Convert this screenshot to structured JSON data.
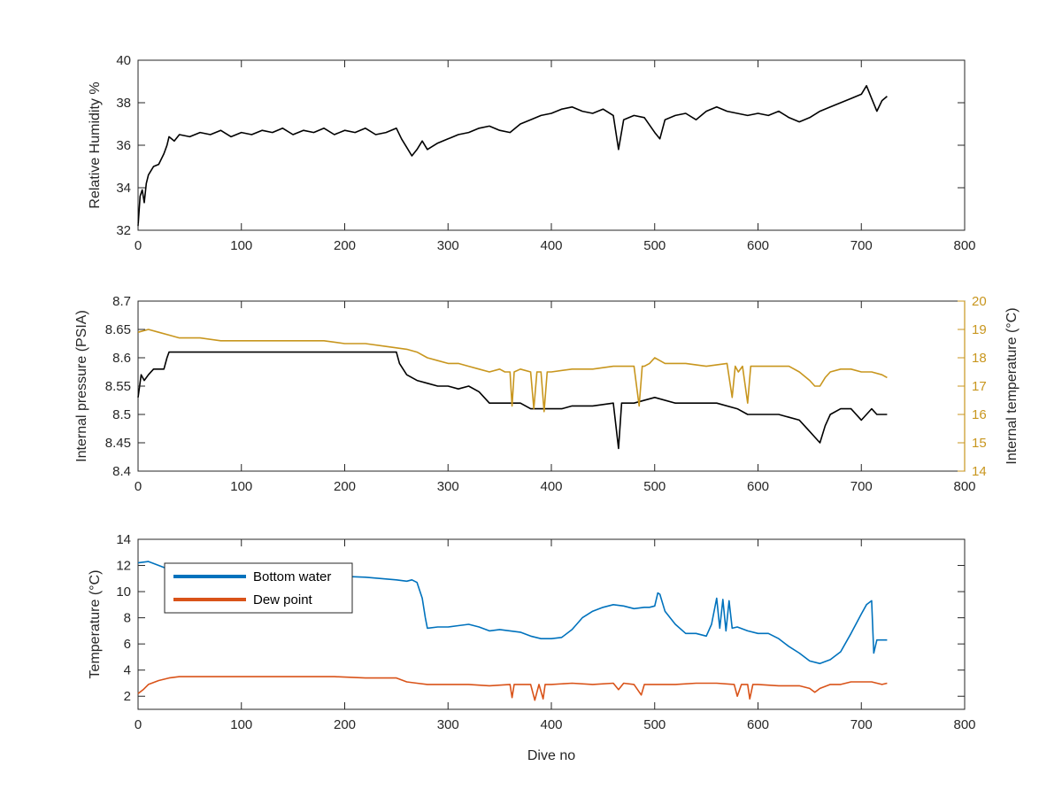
{
  "colors": {
    "black": "#000000",
    "gold": "#C8961E",
    "blue": "#0072BD",
    "orange": "#D95319",
    "axis": "#262626"
  },
  "chart_data": [
    {
      "type": "line",
      "xlabel": "",
      "ylabel": "Relative Humidity %",
      "xlim": [
        0,
        800
      ],
      "ylim": [
        32,
        40
      ],
      "xticks": [
        0,
        100,
        200,
        300,
        400,
        500,
        600,
        700,
        800
      ],
      "yticks": [
        32,
        34,
        36,
        38,
        40
      ],
      "grid": false,
      "series": [
        {
          "color": "#000000",
          "x": [
            0,
            2,
            4,
            6,
            8,
            10,
            15,
            20,
            25,
            28,
            30,
            35,
            40,
            50,
            60,
            70,
            80,
            90,
            100,
            110,
            120,
            130,
            140,
            150,
            160,
            170,
            180,
            190,
            200,
            210,
            220,
            230,
            240,
            250,
            255,
            260,
            265,
            270,
            275,
            280,
            290,
            300,
            310,
            320,
            330,
            340,
            350,
            360,
            370,
            380,
            390,
            400,
            410,
            420,
            430,
            440,
            450,
            460,
            465,
            470,
            480,
            490,
            500,
            505,
            510,
            520,
            530,
            540,
            550,
            560,
            570,
            580,
            590,
            600,
            610,
            620,
            630,
            640,
            650,
            660,
            670,
            680,
            690,
            700,
            705,
            710,
            715,
            720,
            725
          ],
          "y": [
            32.2,
            33.6,
            33.9,
            33.3,
            34.2,
            34.6,
            35.0,
            35.1,
            35.6,
            36.0,
            36.4,
            36.2,
            36.5,
            36.4,
            36.6,
            36.5,
            36.7,
            36.4,
            36.6,
            36.5,
            36.7,
            36.6,
            36.8,
            36.5,
            36.7,
            36.6,
            36.8,
            36.5,
            36.7,
            36.6,
            36.8,
            36.5,
            36.6,
            36.8,
            36.3,
            35.9,
            35.5,
            35.8,
            36.2,
            35.8,
            36.1,
            36.3,
            36.5,
            36.6,
            36.8,
            36.9,
            36.7,
            36.6,
            37.0,
            37.2,
            37.4,
            37.5,
            37.7,
            37.8,
            37.6,
            37.5,
            37.7,
            37.4,
            35.8,
            37.2,
            37.4,
            37.3,
            36.6,
            36.3,
            37.2,
            37.4,
            37.5,
            37.2,
            37.6,
            37.8,
            37.6,
            37.5,
            37.4,
            37.5,
            37.4,
            37.6,
            37.3,
            37.1,
            37.3,
            37.6,
            37.8,
            38.0,
            38.2,
            38.4,
            38.8,
            38.2,
            37.6,
            38.1,
            38.3
          ]
        }
      ]
    },
    {
      "type": "line",
      "xlabel": "",
      "ylabel": "Internal pressure (PSIA)",
      "y2label": "Internal temperature (°C)",
      "xlim": [
        0,
        800
      ],
      "ylim": [
        8.4,
        8.7
      ],
      "y2lim": [
        14,
        20
      ],
      "xticks": [
        0,
        100,
        200,
        300,
        400,
        500,
        600,
        700,
        800
      ],
      "yticks": [
        8.4,
        8.45,
        8.5,
        8.55,
        8.6,
        8.65,
        8.7
      ],
      "y2ticks": [
        14,
        15,
        16,
        17,
        18,
        19,
        20
      ],
      "grid": false,
      "series": [
        {
          "axis": "left",
          "color": "#000000",
          "x": [
            0,
            3,
            6,
            10,
            15,
            20,
            25,
            28,
            30,
            40,
            60,
            80,
            100,
            120,
            140,
            160,
            180,
            200,
            220,
            240,
            250,
            253,
            260,
            270,
            280,
            290,
            300,
            310,
            320,
            330,
            340,
            350,
            360,
            370,
            380,
            390,
            400,
            410,
            420,
            440,
            460,
            465,
            468,
            480,
            500,
            520,
            540,
            560,
            580,
            590,
            600,
            620,
            640,
            650,
            655,
            660,
            665,
            670,
            680,
            690,
            700,
            710,
            715,
            720,
            725
          ],
          "y": [
            8.53,
            8.57,
            8.56,
            8.57,
            8.58,
            8.58,
            8.58,
            8.6,
            8.61,
            8.61,
            8.61,
            8.61,
            8.61,
            8.61,
            8.61,
            8.61,
            8.61,
            8.61,
            8.61,
            8.61,
            8.61,
            8.59,
            8.57,
            8.56,
            8.555,
            8.55,
            8.55,
            8.545,
            8.55,
            8.54,
            8.52,
            8.52,
            8.52,
            8.52,
            8.51,
            8.51,
            8.51,
            8.51,
            8.515,
            8.515,
            8.52,
            8.44,
            8.52,
            8.52,
            8.53,
            8.52,
            8.52,
            8.52,
            8.51,
            8.5,
            8.5,
            8.5,
            8.49,
            8.47,
            8.46,
            8.45,
            8.48,
            8.5,
            8.51,
            8.51,
            8.49,
            8.51,
            8.5,
            8.5,
            8.5
          ]
        },
        {
          "axis": "right",
          "color": "#C8961E",
          "x": [
            0,
            10,
            20,
            30,
            40,
            60,
            80,
            100,
            120,
            140,
            160,
            180,
            200,
            220,
            240,
            260,
            270,
            280,
            290,
            300,
            310,
            320,
            330,
            340,
            350,
            355,
            360,
            362,
            364,
            370,
            380,
            383,
            386,
            390,
            393,
            396,
            400,
            420,
            440,
            460,
            480,
            485,
            488,
            490,
            495,
            500,
            505,
            510,
            530,
            550,
            570,
            575,
            578,
            581,
            585,
            590,
            593,
            596,
            600,
            620,
            630,
            640,
            650,
            655,
            660,
            665,
            670,
            680,
            690,
            700,
            710,
            720,
            725
          ],
          "y": [
            18.9,
            19.0,
            18.9,
            18.8,
            18.7,
            18.7,
            18.6,
            18.6,
            18.6,
            18.6,
            18.6,
            18.6,
            18.5,
            18.5,
            18.4,
            18.3,
            18.2,
            18.0,
            17.9,
            17.8,
            17.8,
            17.7,
            17.6,
            17.5,
            17.6,
            17.5,
            17.5,
            16.3,
            17.5,
            17.6,
            17.5,
            16.2,
            17.5,
            17.5,
            16.1,
            17.5,
            17.5,
            17.6,
            17.6,
            17.7,
            17.7,
            16.3,
            17.7,
            17.7,
            17.8,
            18.0,
            17.9,
            17.8,
            17.8,
            17.7,
            17.8,
            16.6,
            17.7,
            17.5,
            17.7,
            16.4,
            17.7,
            17.7,
            17.7,
            17.7,
            17.7,
            17.5,
            17.2,
            17.0,
            17.0,
            17.3,
            17.5,
            17.6,
            17.6,
            17.5,
            17.5,
            17.4,
            17.3
          ]
        }
      ]
    },
    {
      "type": "line",
      "xlabel": "Dive no",
      "ylabel": "Temperature (°C)",
      "xlim": [
        0,
        800
      ],
      "ylim": [
        1,
        14
      ],
      "xticks": [
        0,
        100,
        200,
        300,
        400,
        500,
        600,
        700,
        800
      ],
      "yticks": [
        2,
        4,
        6,
        8,
        10,
        12,
        14
      ],
      "grid": false,
      "legend_placement": "top-left",
      "series": [
        {
          "name": "Bottom water",
          "color": "#0072BD",
          "x": [
            0,
            10,
            20,
            30,
            50,
            80,
            100,
            130,
            160,
            190,
            220,
            250,
            260,
            265,
            270,
            275,
            278,
            280,
            290,
            300,
            310,
            320,
            330,
            340,
            350,
            360,
            370,
            380,
            390,
            400,
            410,
            420,
            430,
            440,
            450,
            460,
            470,
            480,
            490,
            495,
            500,
            503,
            505,
            510,
            520,
            530,
            540,
            550,
            555,
            560,
            563,
            566,
            569,
            572,
            575,
            580,
            590,
            600,
            610,
            620,
            630,
            640,
            650,
            660,
            670,
            680,
            690,
            700,
            705,
            710,
            712,
            715,
            720,
            725
          ],
          "y": [
            12.2,
            12.3,
            12.0,
            11.7,
            11.6,
            11.5,
            11.5,
            11.4,
            11.3,
            11.2,
            11.1,
            10.9,
            10.8,
            10.9,
            10.7,
            9.5,
            8.0,
            7.2,
            7.3,
            7.3,
            7.4,
            7.5,
            7.3,
            7.0,
            7.1,
            7.0,
            6.9,
            6.6,
            6.4,
            6.4,
            6.5,
            7.1,
            8.0,
            8.5,
            8.8,
            9.0,
            8.9,
            8.7,
            8.8,
            8.8,
            8.9,
            9.9,
            9.8,
            8.5,
            7.5,
            6.8,
            6.8,
            6.6,
            7.5,
            9.5,
            7.2,
            9.4,
            7.0,
            9.3,
            7.2,
            7.3,
            7.0,
            6.8,
            6.8,
            6.4,
            5.8,
            5.3,
            4.7,
            4.5,
            4.8,
            5.4,
            6.8,
            8.3,
            9.0,
            9.3,
            5.3,
            6.3,
            6.3,
            6.3
          ]
        },
        {
          "name": "Dew point",
          "color": "#D95319",
          "x": [
            0,
            5,
            10,
            20,
            30,
            40,
            60,
            80,
            100,
            130,
            160,
            190,
            220,
            250,
            260,
            270,
            280,
            300,
            320,
            340,
            360,
            362,
            364,
            370,
            380,
            384,
            388,
            392,
            394,
            396,
            400,
            420,
            440,
            460,
            465,
            470,
            480,
            487,
            490,
            500,
            520,
            540,
            560,
            577,
            580,
            584,
            590,
            592,
            595,
            600,
            620,
            640,
            650,
            655,
            660,
            670,
            680,
            690,
            700,
            710,
            720,
            725
          ],
          "y": [
            2.2,
            2.5,
            2.9,
            3.2,
            3.4,
            3.5,
            3.5,
            3.5,
            3.5,
            3.5,
            3.5,
            3.5,
            3.4,
            3.4,
            3.1,
            3.0,
            2.9,
            2.9,
            2.9,
            2.8,
            2.9,
            1.9,
            2.9,
            2.9,
            2.9,
            1.7,
            2.9,
            1.8,
            2.9,
            2.9,
            2.9,
            3.0,
            2.9,
            3.0,
            2.5,
            3.0,
            2.9,
            2.1,
            2.9,
            2.9,
            2.9,
            3.0,
            3.0,
            2.9,
            2.0,
            2.9,
            2.9,
            1.8,
            2.9,
            2.9,
            2.8,
            2.8,
            2.6,
            2.3,
            2.6,
            2.9,
            2.9,
            3.1,
            3.1,
            3.1,
            2.9,
            3.0
          ]
        }
      ]
    }
  ]
}
